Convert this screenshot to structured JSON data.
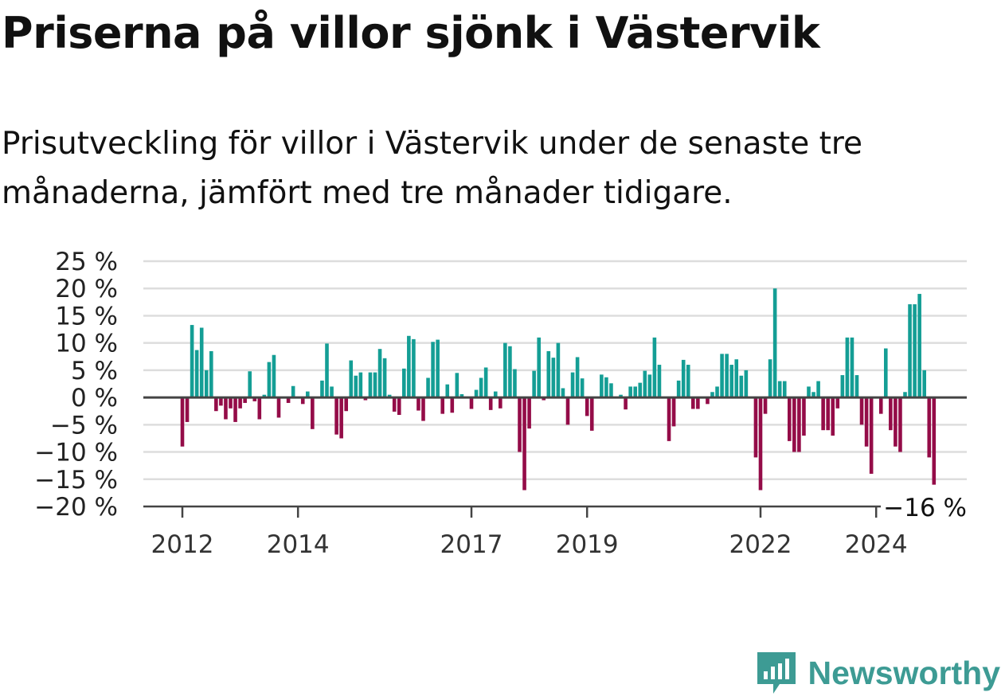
{
  "title": "Priserna på villor sjönk i Västervik",
  "subtitle": "Prisutveckling för villor i Västervik under de senaste tre månaderna, jämfört med tre månader tidigare.",
  "brand": {
    "name": "Newsworthy",
    "icon": "newsworthy-logo-icon"
  },
  "colors": {
    "positive": "#149e95",
    "negative": "#940c48",
    "grid": "#dddddd",
    "axis": "#444444",
    "brand": "#3d9b94"
  },
  "chart_data": {
    "type": "bar",
    "title": "Priserna på villor sjönk i Västervik",
    "xlabel": "",
    "ylabel": "",
    "ylim": [
      -20,
      25
    ],
    "yticks": [
      25,
      20,
      15,
      10,
      5,
      0,
      -5,
      -10,
      -15,
      -20
    ],
    "ytick_labels": [
      "25 %",
      "20 %",
      "15 %",
      "10 %",
      "5 %",
      "0 %",
      "−5 %",
      "−10 %",
      "−15 %",
      "−20 %"
    ],
    "xticks": [
      {
        "label": "2012",
        "month": 0
      },
      {
        "label": "2014",
        "month": 24
      },
      {
        "label": "2017",
        "month": 60
      },
      {
        "label": "2019",
        "month": 84
      },
      {
        "label": "2022",
        "month": 120
      },
      {
        "label": "2024",
        "month": 144
      }
    ],
    "grid": true,
    "start": "2012-01",
    "frequency": "monthly",
    "values": [
      -9,
      -4.5,
      13.3,
      8.7,
      12.8,
      5,
      8.5,
      -2.5,
      -1.5,
      -4,
      -2,
      -4.5,
      -2,
      -1,
      4.8,
      -0.7,
      -4,
      0.5,
      6.5,
      7.8,
      -3.7,
      0,
      -1,
      2.1,
      0,
      -1.2,
      1.1,
      -5.8,
      0,
      3.1,
      9.9,
      2,
      -6.8,
      -7.5,
      -2.5,
      6.8,
      4,
      4.6,
      -0.5,
      4.6,
      4.6,
      8.9,
      7.2,
      0.5,
      -2.6,
      -3.2,
      5.3,
      11.3,
      10.7,
      -2.4,
      -4.3,
      3.6,
      10.2,
      10.6,
      -3,
      2.4,
      -2.8,
      4.5,
      0.6,
      0,
      -2.1,
      1.4,
      3.6,
      5.5,
      -2.3,
      1.1,
      -2,
      10,
      9.4,
      5.2,
      -10,
      -17,
      -5.7,
      4.9,
      11,
      -0.5,
      8.5,
      7.3,
      10,
      1.7,
      -5,
      4.6,
      7.4,
      3.5,
      -3.4,
      -6.1,
      0,
      4.2,
      3.7,
      2.6,
      0,
      0.5,
      -2.2,
      2,
      2,
      2.7,
      4.9,
      4.2,
      11,
      6,
      0,
      -8,
      -5.3,
      3.1,
      6.9,
      6,
      -2.1,
      -2.1,
      0,
      -1.2,
      1,
      2,
      8,
      8,
      6,
      7,
      4,
      5,
      0,
      -11,
      -17,
      -3,
      7,
      20,
      3,
      3,
      -8,
      -10,
      -10,
      -7,
      2,
      1,
      3,
      -6,
      -6,
      -7,
      -2,
      4.1,
      11,
      11,
      4.1,
      -5,
      -9,
      -14,
      0,
      -3,
      9,
      -6,
      -9,
      -10,
      1,
      17.1,
      17.1,
      19,
      5,
      -11,
      -16
    ],
    "last_value_label": "−16 %"
  }
}
